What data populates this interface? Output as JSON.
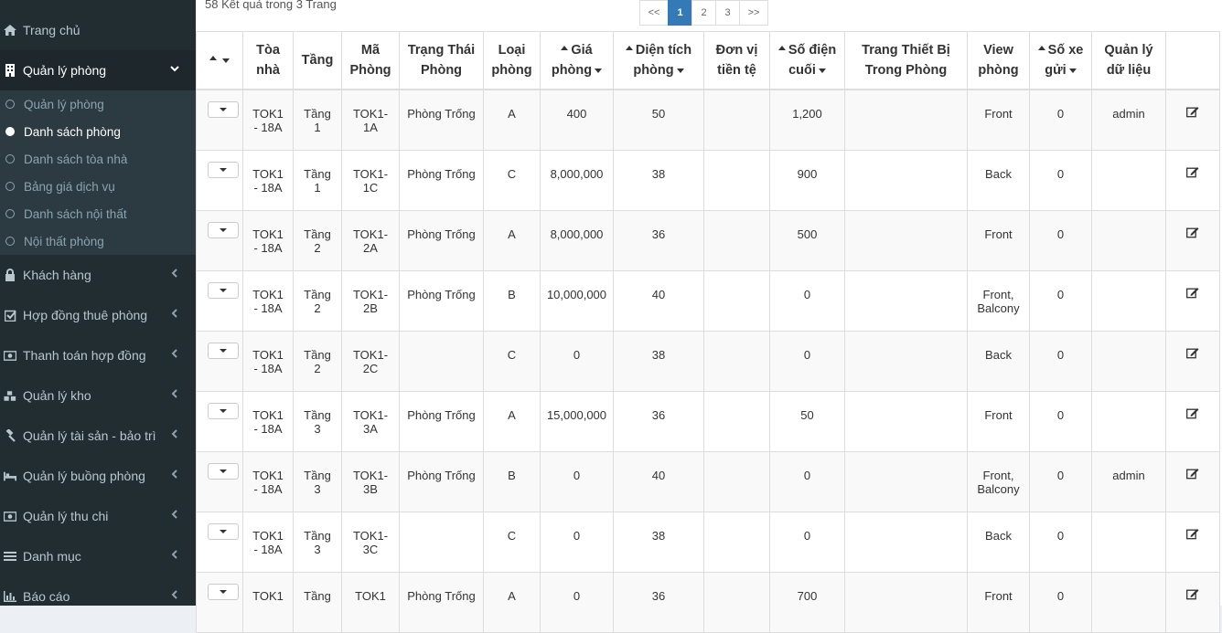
{
  "sidebar": {
    "items": [
      {
        "label": "Trang chủ",
        "icon": "home-icon"
      },
      {
        "label": "Quản lý phòng",
        "icon": "building-icon",
        "active": true
      },
      {
        "label": "Khách hàng",
        "icon": "lock-icon"
      },
      {
        "label": "Hợp đồng thuê phòng",
        "icon": "check-square-icon"
      },
      {
        "label": "Thanh toán hợp đồng",
        "icon": "money-icon"
      },
      {
        "label": "Quản lý kho",
        "icon": "cubes-icon"
      },
      {
        "label": "Quản lý tài sản - bảo trì",
        "icon": "gavel-icon"
      },
      {
        "label": "Quản lý buồng phòng",
        "icon": "bed-icon"
      },
      {
        "label": "Quản lý thu chi",
        "icon": "money-icon"
      },
      {
        "label": "Danh mục",
        "icon": "list-icon"
      },
      {
        "label": "Báo cáo",
        "icon": "bar-chart-icon"
      }
    ],
    "submenu": [
      {
        "label": "Quản lý phòng"
      },
      {
        "label": "Danh sách phòng",
        "active": true
      },
      {
        "label": "Danh sách tòa nhà"
      },
      {
        "label": "Bảng giá dịch vụ"
      },
      {
        "label": "Danh sách nội thất"
      },
      {
        "label": "Nội thất phòng"
      }
    ]
  },
  "results_text": "58 Kết quả trong 3 Trang",
  "pagination": [
    "<<",
    "1",
    "2",
    "3",
    ">>"
  ],
  "table": {
    "headers": [
      {
        "l1": "",
        "l2": ""
      },
      {
        "l1": "Tòa",
        "l2": "nhà"
      },
      {
        "l1": "Tầng",
        "l2": ""
      },
      {
        "l1": "Mã",
        "l2": "Phòng"
      },
      {
        "l1": "Trạng Thái",
        "l2": "Phòng"
      },
      {
        "l1": "Loại",
        "l2": "phòng"
      },
      {
        "l1": "Giá",
        "l2": "phòng"
      },
      {
        "l1": "Diện tích",
        "l2": "phòng"
      },
      {
        "l1": "Đơn vị",
        "l2": "tiền tệ"
      },
      {
        "l1": "Số điện",
        "l2": "cuối"
      },
      {
        "l1": "Trang Thiết Bị",
        "l2": "Trong Phòng"
      },
      {
        "l1": "View",
        "l2": "phòng"
      },
      {
        "l1": "Số xe",
        "l2": "gửi"
      },
      {
        "l1": "Quản lý",
        "l2": "dữ liệu"
      },
      {
        "l1": "",
        "l2": ""
      }
    ],
    "rows": [
      {
        "toa1": "TOK1",
        "toa2": "- 18A",
        "tang1": "Tầng",
        "tang2": "1",
        "ma1": "TOK1-",
        "ma2": "1A",
        "tt": "Phòng Trống",
        "loai": "A",
        "gia": "400",
        "dt": "50",
        "dv": "",
        "sd": "1,200",
        "tb": "",
        "view1": "Front",
        "view2": "",
        "xe": "0",
        "ql": "admin"
      },
      {
        "toa1": "TOK1",
        "toa2": "- 18A",
        "tang1": "Tầng",
        "tang2": "1",
        "ma1": "TOK1-",
        "ma2": "1C",
        "tt": "Phòng Trống",
        "loai": "C",
        "gia": "8,000,000",
        "dt": "38",
        "dv": "",
        "sd": "900",
        "tb": "",
        "view1": "Back",
        "view2": "",
        "xe": "0",
        "ql": ""
      },
      {
        "toa1": "TOK1",
        "toa2": "- 18A",
        "tang1": "Tầng",
        "tang2": "2",
        "ma1": "TOK1-",
        "ma2": "2A",
        "tt": "Phòng Trống",
        "loai": "A",
        "gia": "8,000,000",
        "dt": "36",
        "dv": "",
        "sd": "500",
        "tb": "",
        "view1": "Front",
        "view2": "",
        "xe": "0",
        "ql": ""
      },
      {
        "toa1": "TOK1",
        "toa2": "- 18A",
        "tang1": "Tầng",
        "tang2": "2",
        "ma1": "TOK1-",
        "ma2": "2B",
        "tt": "Phòng Trống",
        "loai": "B",
        "gia": "10,000,000",
        "dt": "40",
        "dv": "",
        "sd": "0",
        "tb": "",
        "view1": "Front,",
        "view2": "Balcony",
        "xe": "0",
        "ql": ""
      },
      {
        "toa1": "TOK1",
        "toa2": "- 18A",
        "tang1": "Tầng",
        "tang2": "2",
        "ma1": "TOK1-",
        "ma2": "2C",
        "tt": "",
        "loai": "C",
        "gia": "0",
        "dt": "38",
        "dv": "",
        "sd": "0",
        "tb": "",
        "view1": "Back",
        "view2": "",
        "xe": "0",
        "ql": ""
      },
      {
        "toa1": "TOK1",
        "toa2": "- 18A",
        "tang1": "Tầng",
        "tang2": "3",
        "ma1": "TOK1-",
        "ma2": "3A",
        "tt": "Phòng Trống",
        "loai": "A",
        "gia": "15,000,000",
        "dt": "36",
        "dv": "",
        "sd": "50",
        "tb": "",
        "view1": "Front",
        "view2": "",
        "xe": "0",
        "ql": ""
      },
      {
        "toa1": "TOK1",
        "toa2": "- 18A",
        "tang1": "Tầng",
        "tang2": "3",
        "ma1": "TOK1-",
        "ma2": "3B",
        "tt": "Phòng Trống",
        "loai": "B",
        "gia": "0",
        "dt": "40",
        "dv": "",
        "sd": "0",
        "tb": "",
        "view1": "Front,",
        "view2": "Balcony",
        "xe": "0",
        "ql": "admin"
      },
      {
        "toa1": "TOK1",
        "toa2": "- 18A",
        "tang1": "Tầng",
        "tang2": "3",
        "ma1": "TOK1-",
        "ma2": "3C",
        "tt": "",
        "loai": "C",
        "gia": "0",
        "dt": "38",
        "dv": "",
        "sd": "0",
        "tb": "",
        "view1": "Back",
        "view2": "",
        "xe": "0",
        "ql": ""
      },
      {
        "toa1": "TOK1",
        "toa2": "",
        "tang1": "Tầng",
        "tang2": "",
        "ma1": "TOK1",
        "ma2": "",
        "tt": "Phòng Trống",
        "loai": "A",
        "gia": "0",
        "dt": "36",
        "dv": "",
        "sd": "700",
        "tb": "",
        "view1": "Front",
        "view2": "",
        "xe": "0",
        "ql": ""
      }
    ]
  }
}
